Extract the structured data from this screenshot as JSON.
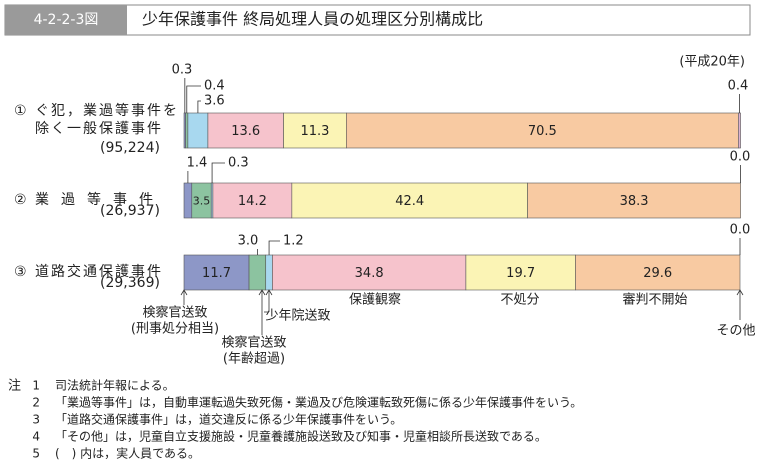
{
  "figure_number": "4-2-2-3図",
  "chart_data": {
    "type": "stacked-bar-horizontal",
    "title": "少年保護事件 終局処理人員の処理区分別構成比",
    "subtitle": "(平成20年)",
    "row_numbers": [
      "①",
      "②",
      "③"
    ],
    "categories": [
      "ぐ犯，業過等事件を除く一般保護事件",
      "業過等事件",
      "道路交通保護事件"
    ],
    "totals": [
      {
        "value": 95224,
        "label": "(95,224)"
      },
      {
        "value": 26937,
        "label": "(26,937)"
      },
      {
        "value": 29369,
        "label": "(29,369)"
      }
    ],
    "xlim": [
      0,
      100
    ],
    "series": [
      {
        "name": "検察官送致",
        "qualifier": "(刑事処分相当)",
        "color": "#8d97c7",
        "values": [
          0.3,
          1.4,
          11.7
        ],
        "value_labels": [
          "0.3",
          "1.4",
          "11.7"
        ]
      },
      {
        "name": "検察官送致",
        "qualifier": "(年齢超過)",
        "color": "#8cc3a0",
        "values": [
          0.4,
          3.5,
          3.0
        ],
        "value_labels": [
          "0.4",
          "3.5",
          "3.0"
        ]
      },
      {
        "name": "少年院送致",
        "color": "#a8d8ef",
        "values": [
          3.6,
          0.3,
          1.2
        ],
        "value_labels": [
          "3.6",
          "0.3",
          "1.2"
        ]
      },
      {
        "name": "保護観察",
        "color": "#f6c3cc",
        "values": [
          13.6,
          14.2,
          34.8
        ],
        "value_labels": [
          "13.6",
          "14.2",
          "34.8"
        ]
      },
      {
        "name": "不処分",
        "color": "#fbf4b5",
        "values": [
          11.3,
          42.4,
          19.7
        ],
        "value_labels": [
          "11.3",
          "42.4",
          "19.7"
        ]
      },
      {
        "name": "審判不開始",
        "color": "#f8caa2",
        "values": [
          70.5,
          38.3,
          29.6
        ],
        "value_labels": [
          "70.5",
          "38.3",
          "29.6"
        ]
      },
      {
        "name": "その他",
        "color": "#dbb2cf",
        "values": [
          0.4,
          0.0,
          0.0
        ],
        "value_labels": [
          "0.4",
          "0.0",
          "0.0"
        ]
      }
    ]
  },
  "notes": {
    "heading": "注",
    "items": [
      {
        "number": "1",
        "text": "司法統計年報による。"
      },
      {
        "number": "2",
        "text": "「業過等事件」は，自動車運転過失致死傷・業過及び危険運転致死傷に係る少年保護事件をいう。"
      },
      {
        "number": "3",
        "text": "「道路交通保護事件」は，道交違反に係る少年保護事件をいう。"
      },
      {
        "number": "4",
        "text": "「その他」は，児童自立支援施設・児童養護施設送致及び知事・児童相談所長送致である。"
      },
      {
        "number": "5",
        "text": "(　) 内は，実人員である。"
      }
    ]
  }
}
